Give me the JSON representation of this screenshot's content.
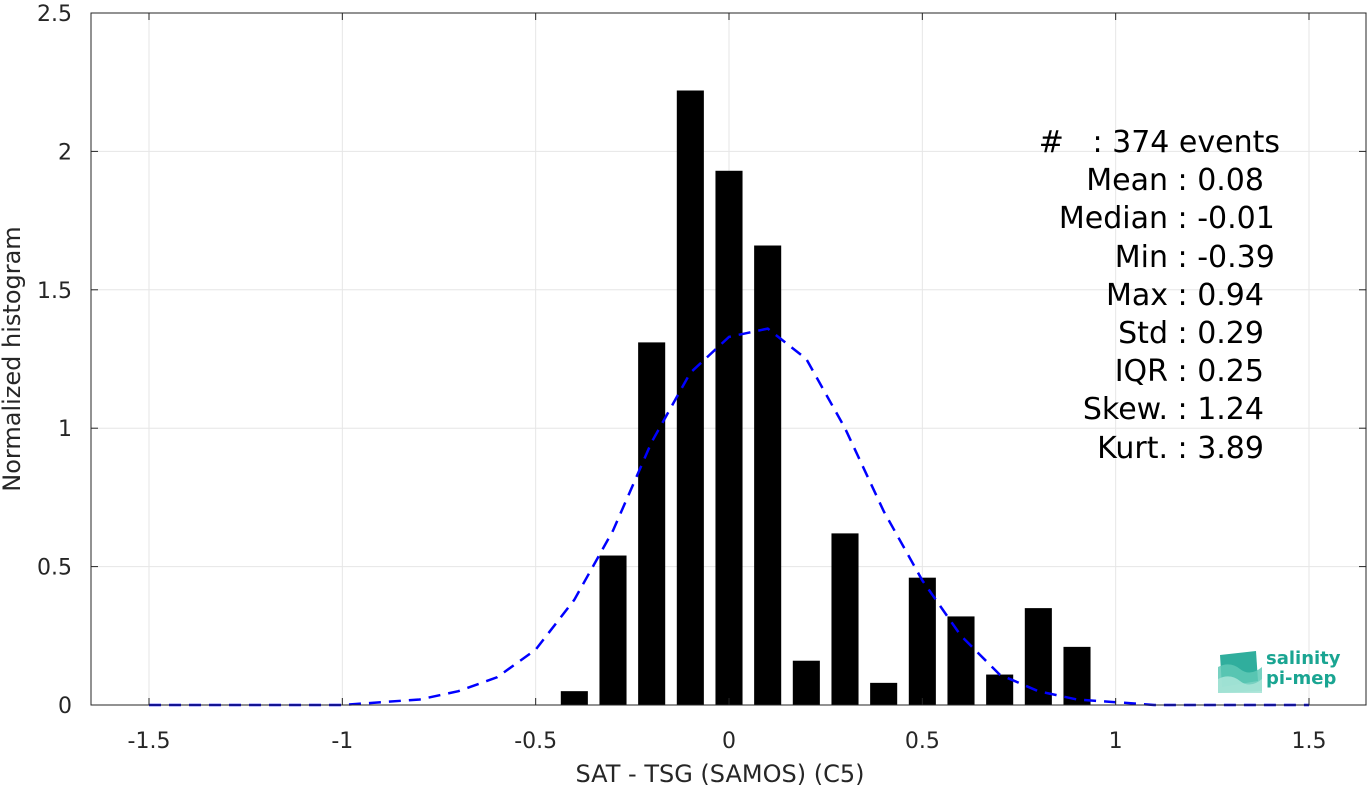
{
  "chart_data": {
    "type": "bar",
    "xlabel": "SAT - TSG (SAMOS) (C5)",
    "ylabel": "Normalized histogram",
    "xlim": [
      -1.65,
      1.65
    ],
    "ylim": [
      0,
      2.5
    ],
    "xticks": [
      -1.5,
      -1,
      -0.5,
      0,
      0.5,
      1,
      1.5
    ],
    "xtick_labels": [
      "-1.5",
      "-1",
      "-0.5",
      "0",
      "0.5",
      "1",
      "1.5"
    ],
    "yticks": [
      0,
      0.5,
      1,
      1.5,
      2,
      2.5
    ],
    "ytick_labels": [
      "0",
      "0.5",
      "1",
      "1.5",
      "2",
      "2.5"
    ],
    "grid": true,
    "bar_width": 0.07,
    "bars": {
      "x": [
        -0.4,
        -0.3,
        -0.2,
        -0.1,
        0.0,
        0.1,
        0.2,
        0.3,
        0.4,
        0.5,
        0.6,
        0.7,
        0.8,
        0.9
      ],
      "values": [
        0.05,
        0.54,
        1.31,
        2.22,
        1.93,
        1.66,
        0.16,
        0.62,
        0.08,
        0.46,
        0.32,
        0.11,
        0.35,
        0.21
      ],
      "color": "#000000"
    },
    "fit_curve": {
      "style": "dashed",
      "color": "#0000ff",
      "x": [
        -1.5,
        -1.4,
        -1.3,
        -1.2,
        -1.1,
        -1.0,
        -0.9,
        -0.8,
        -0.7,
        -0.6,
        -0.5,
        -0.4,
        -0.3,
        -0.2,
        -0.1,
        0.0,
        0.1,
        0.2,
        0.3,
        0.4,
        0.5,
        0.6,
        0.7,
        0.8,
        0.9,
        1.0,
        1.1,
        1.2,
        1.3,
        1.4,
        1.5
      ],
      "y": [
        0.0,
        0.0,
        0.0,
        0.0,
        0.0,
        0.0,
        0.01,
        0.02,
        0.05,
        0.1,
        0.2,
        0.38,
        0.63,
        0.95,
        1.2,
        1.33,
        1.36,
        1.25,
        1.0,
        0.7,
        0.45,
        0.25,
        0.11,
        0.05,
        0.02,
        0.01,
        0.0,
        0.0,
        0.0,
        0.0,
        0.0
      ]
    }
  },
  "stats": [
    {
      "key": "#  ",
      "sep": " : ",
      "value": "374 events"
    },
    {
      "key": "Mean",
      "sep": " : ",
      "value": "0.08"
    },
    {
      "key": "Median",
      "sep": " : ",
      "value": "-0.01"
    },
    {
      "key": "Min",
      "sep": " : ",
      "value": "-0.39"
    },
    {
      "key": "Max",
      "sep": " : ",
      "value": "0.94"
    },
    {
      "key": "Std",
      "sep": " : ",
      "value": "0.29"
    },
    {
      "key": "IQR",
      "sep": " : ",
      "value": "0.25"
    },
    {
      "key": "Skew.",
      "sep": " : ",
      "value": "1.24"
    },
    {
      "key": "Kurt.",
      "sep": " : ",
      "value": "3.89"
    }
  ],
  "logo": {
    "line1": "salinity",
    "line2": "pi-mep",
    "color": "#1aa592"
  }
}
